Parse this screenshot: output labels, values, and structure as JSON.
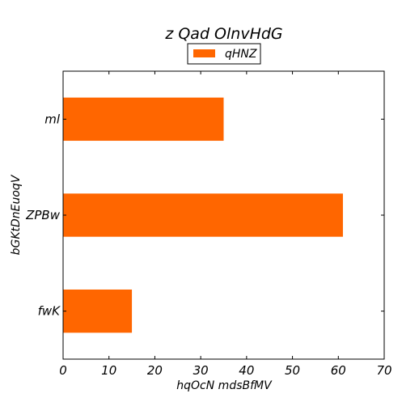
{
  "chart_data": {
    "type": "bar",
    "orientation": "horizontal",
    "title": "z  Qad OlnvHdG",
    "xlabel": "hqOcN mdsBfMV",
    "ylabel": "bGKtDnEuoqV",
    "categories": [
      "fwK",
      "ZPBw",
      "ml"
    ],
    "series": [
      {
        "name": "qHNZ",
        "values": [
          15,
          61,
          35
        ],
        "color": "#ff6600"
      }
    ],
    "xlim": [
      0,
      70
    ],
    "xticks": [
      0,
      10,
      20,
      30,
      40,
      50,
      60,
      70
    ],
    "grid": false,
    "legend_position": "top-center"
  }
}
